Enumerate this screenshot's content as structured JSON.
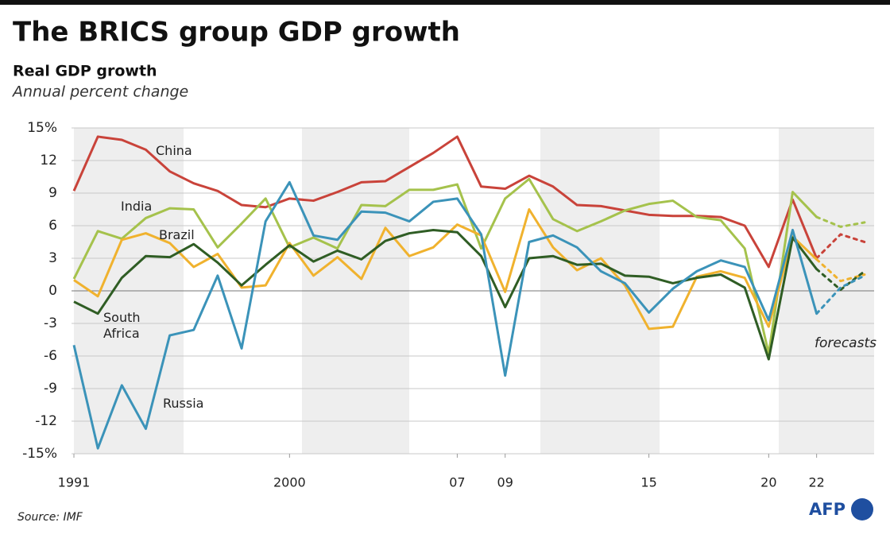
{
  "chart_data": {
    "type": "line",
    "title": "The BRICS group GDP growth",
    "subtitle": "Real GDP growth",
    "y_label": "Annual percent change",
    "annotation": "forecasts",
    "source": "Source: IMF",
    "logo": "AFP",
    "forecast_from": 2022,
    "x": [
      1991,
      1992,
      1993,
      1994,
      1995,
      1996,
      1997,
      1998,
      1999,
      2000,
      2001,
      2002,
      2003,
      2004,
      2005,
      2006,
      2007,
      2008,
      2009,
      2010,
      2011,
      2012,
      2013,
      2014,
      2015,
      2016,
      2017,
      2018,
      2019,
      2020,
      2021,
      2022,
      2023,
      2024
    ],
    "xlim": [
      1990.9,
      2024.4
    ],
    "xticks": [
      1991,
      2000,
      {
        "value": 2007,
        "label": "07"
      },
      {
        "value": 2009,
        "label": "09"
      },
      {
        "value": 2015,
        "label": "15"
      },
      {
        "value": 2020,
        "label": "20"
      },
      {
        "value": 2022,
        "label": "22"
      }
    ],
    "ylim": [
      -15,
      15
    ],
    "yticks": [
      {
        "value": 15,
        "label": "15%"
      },
      12,
      9,
      6,
      3,
      0,
      -3,
      -6,
      -9,
      -12,
      {
        "value": -15,
        "label": "-15%"
      }
    ],
    "grid": true,
    "series": [
      {
        "name": "China",
        "color": "#c9433a",
        "values": [
          9.2,
          14.2,
          13.9,
          13.0,
          11.0,
          9.9,
          9.2,
          7.9,
          7.7,
          8.5,
          8.3,
          9.1,
          10.0,
          10.1,
          11.4,
          12.7,
          14.2,
          9.6,
          9.4,
          10.6,
          9.6,
          7.9,
          7.8,
          7.4,
          7.0,
          6.9,
          6.9,
          6.8,
          6.0,
          2.2,
          8.4,
          3.0,
          5.2,
          4.5
        ]
      },
      {
        "name": "India",
        "color": "#a5c24c",
        "values": [
          1.1,
          5.5,
          4.8,
          6.7,
          7.6,
          7.5,
          4.0,
          6.2,
          8.5,
          4.0,
          4.9,
          3.9,
          7.9,
          7.8,
          9.3,
          9.3,
          9.8,
          3.9,
          8.5,
          10.3,
          6.6,
          5.5,
          6.4,
          7.4,
          8.0,
          8.3,
          6.8,
          6.5,
          3.9,
          -5.8,
          9.1,
          6.8,
          5.9,
          6.3
        ]
      },
      {
        "name": "Brazil",
        "color": "#f0b22e",
        "values": [
          1.0,
          -0.5,
          4.7,
          5.3,
          4.4,
          2.2,
          3.4,
          0.3,
          0.5,
          4.4,
          1.4,
          3.1,
          1.1,
          5.8,
          3.2,
          4.0,
          6.1,
          5.1,
          -0.1,
          7.5,
          4.0,
          1.9,
          3.0,
          0.5,
          -3.5,
          -3.3,
          1.3,
          1.8,
          1.2,
          -3.3,
          5.0,
          2.9,
          0.9,
          1.5
        ]
      },
      {
        "name": "South Africa",
        "color": "#2f5d24",
        "values": [
          -1.0,
          -2.1,
          1.2,
          3.2,
          3.1,
          4.3,
          2.6,
          0.5,
          2.4,
          4.2,
          2.7,
          3.7,
          2.9,
          4.6,
          5.3,
          5.6,
          5.4,
          3.2,
          -1.5,
          3.0,
          3.2,
          2.4,
          2.5,
          1.4,
          1.3,
          0.7,
          1.2,
          1.5,
          0.3,
          -6.3,
          4.9,
          2.0,
          0.1,
          1.8
        ]
      },
      {
        "name": "Russia",
        "color": "#3b93b9",
        "values": [
          -5.0,
          -14.5,
          -8.7,
          -12.7,
          -4.1,
          -3.6,
          1.4,
          -5.3,
          6.4,
          10.0,
          5.1,
          4.7,
          7.3,
          7.2,
          6.4,
          8.2,
          8.5,
          5.2,
          -7.8,
          4.5,
          5.1,
          4.0,
          1.8,
          0.7,
          -2.0,
          0.2,
          1.8,
          2.8,
          2.2,
          -2.7,
          5.6,
          -2.1,
          0.3,
          1.4
        ]
      }
    ]
  }
}
